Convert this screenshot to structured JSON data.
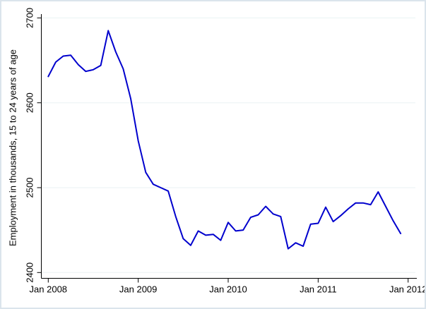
{
  "window": {
    "background_color": "#ffffff",
    "border_color": "#dbe4ec"
  },
  "chart_data": {
    "type": "line",
    "title": "",
    "xlabel": "",
    "ylabel": "Employment in thousands, 15 to 24 years of age",
    "legend": "none",
    "grid": true,
    "grid_color": "#eaf2f3",
    "axis_color": "#000000",
    "line_color": "#0000cd",
    "ylim": [
      2400,
      2700
    ],
    "yticks": [
      2400,
      2500,
      2600,
      2700
    ],
    "ytick_labels": [
      "2400",
      "2500",
      "2600",
      "2700"
    ],
    "xtick_labels": [
      "Jan 2008",
      "Jan 2009",
      "Jan 2010",
      "Jan 2011",
      "Jan 2012"
    ],
    "xtick_month_index": [
      0,
      12,
      24,
      36,
      48
    ],
    "x": [
      "Jan 2008",
      "Feb 2008",
      "Mar 2008",
      "Apr 2008",
      "May 2008",
      "Jun 2008",
      "Jul 2008",
      "Aug 2008",
      "Sep 2008",
      "Oct 2008",
      "Nov 2008",
      "Dec 2008",
      "Jan 2009",
      "Feb 2009",
      "Mar 2009",
      "Apr 2009",
      "May 2009",
      "Jun 2009",
      "Jul 2009",
      "Aug 2009",
      "Sep 2009",
      "Oct 2009",
      "Nov 2009",
      "Dec 2009",
      "Jan 2010",
      "Feb 2010",
      "Mar 2010",
      "Apr 2010",
      "May 2010",
      "Jun 2010",
      "Jul 2010",
      "Aug 2010",
      "Sep 2010",
      "Oct 2010",
      "Nov 2010",
      "Dec 2010",
      "Jan 2011",
      "Feb 2011",
      "Mar 2011",
      "Apr 2011",
      "May 2011",
      "Jun 2011",
      "Jul 2011",
      "Aug 2011",
      "Sep 2011",
      "Oct 2011",
      "Nov 2011",
      "Dec 2011"
    ],
    "values": [
      2631,
      2648,
      2655,
      2656,
      2645,
      2637,
      2639,
      2644,
      2685,
      2660,
      2640,
      2605,
      2555,
      2518,
      2504,
      2500,
      2496,
      2466,
      2440,
      2432,
      2449,
      2444,
      2445,
      2438,
      2459,
      2449,
      2450,
      2465,
      2468,
      2478,
      2469,
      2466,
      2428,
      2435,
      2431,
      2457,
      2458,
      2477,
      2460,
      2467,
      2475,
      2482,
      2482,
      2480,
      2495,
      2478,
      2461,
      2446
    ]
  }
}
